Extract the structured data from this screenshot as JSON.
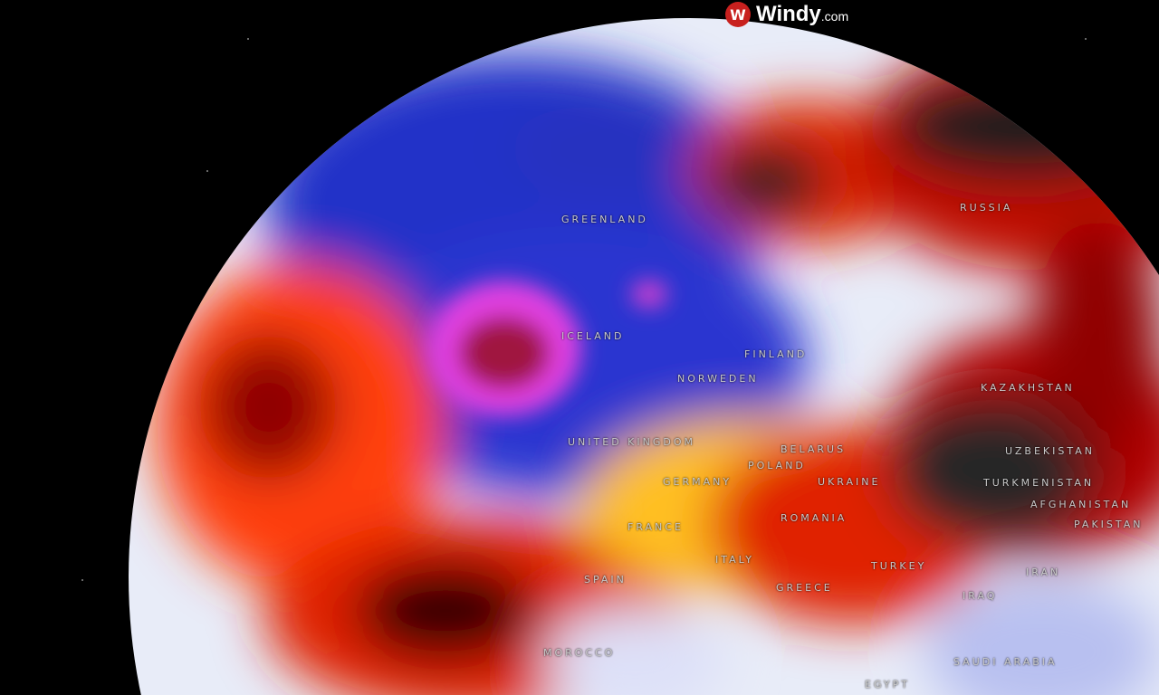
{
  "brand": {
    "name": "Windy",
    "suffix": ".com",
    "icon": "windy-logo-icon",
    "color": "#c8201e"
  },
  "map": {
    "type": "globe weather overlay",
    "colors": {
      "cold_deep": "#1a1ab8",
      "cold": "#3a50e0",
      "neutral": "#e8ecf8",
      "warm": "#ffe23a",
      "hot": "#ff5a10",
      "very_hot": "#b00000",
      "extreme": "#2a2a2a",
      "low_pressure": "#e040e0"
    },
    "labels": [
      "GREENLAND",
      "RUSSIA",
      "ICELAND",
      "FINLAND",
      "NORWEDEN",
      "UNITED KINGDOM",
      "BELARUS",
      "POLAND",
      "GERMANY",
      "UKRAINE",
      "KAZAKHSTAN",
      "UZBEKISTAN",
      "TURKMENISTAN",
      "AFGHANISTAN",
      "PAKISTAN",
      "ROMANIA",
      "FRANCE",
      "SPAIN",
      "ITALY",
      "GREECE",
      "TURKEY",
      "IRAN",
      "IRAQ",
      "SAUDI ARABIA",
      "EGYPT",
      "MOROCCO"
    ]
  }
}
